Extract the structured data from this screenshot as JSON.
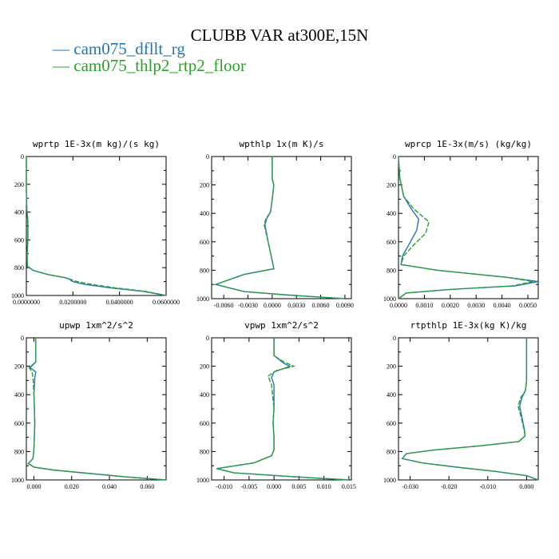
{
  "title": "CLUBB VAR at300E,15N",
  "legend": [
    {
      "label": "— cam075_dfllt_rg",
      "color": "#1f77b4"
    },
    {
      "label": "— cam075_thlp2_rtp2_floor",
      "color": "#2ca02c"
    }
  ],
  "chart_data": [
    {
      "type": "line",
      "title": "wprtp  1E-3x(m kg)/(s kg)",
      "xlim": [
        0,
        0.06
      ],
      "ylim": [
        1000,
        0
      ],
      "xticks": [
        0,
        0.02,
        0.04,
        0.06
      ],
      "xticklabels": [
        "0.0000000",
        "0.0200000",
        "0.0400000",
        "0.0600000"
      ],
      "yticks": [
        0,
        200,
        400,
        600,
        800,
        1000
      ],
      "yticklabels": [
        "0",
        "200",
        "400",
        "600",
        "800",
        "1000"
      ],
      "series": [
        {
          "name": "cam075_dfllt_rg",
          "color": "#1f77b4",
          "x": [
            0,
            0,
            0.0002,
            0.0006,
            0.0007,
            0.0007,
            0.0006,
            0.0003,
            0.0004,
            0.003,
            0.0095,
            0.0165,
            0.0185,
            0.0192,
            0.0205,
            0.025,
            0.036,
            0.05,
            0.06
          ],
          "y": [
            0,
            250,
            380,
            450,
            500,
            550,
            620,
            700,
            790,
            820,
            850,
            872,
            882,
            893,
            903,
            920,
            945,
            970,
            1000
          ]
        },
        {
          "name": "cam075_thlp2_rtp2_floor",
          "color": "#2ca02c",
          "x": [
            0,
            0,
            0.0002,
            0.0005,
            0.0006,
            0.0006,
            0.0005,
            0.0003,
            0.0004,
            0.003,
            0.0095,
            0.0168,
            0.0188,
            0.0203,
            0.0225,
            0.028,
            0.038,
            0.051,
            0.06
          ],
          "y": [
            0,
            250,
            380,
            450,
            500,
            550,
            620,
            700,
            790,
            820,
            850,
            872,
            882,
            893,
            903,
            920,
            945,
            970,
            1000
          ]
        }
      ]
    },
    {
      "type": "line",
      "title": "wpthlp  1x(m K)/s",
      "xlim": [
        -0.0075,
        0.0098
      ],
      "ylim": [
        1000,
        0
      ],
      "xticks": [
        -0.006,
        -0.003,
        0,
        0.003,
        0.006,
        0.009
      ],
      "xticklabels": [
        "-0.0060",
        "-0.0030",
        "0.0000",
        "0.0030",
        "0.0060",
        "0.0090"
      ],
      "yticks": [
        0,
        200,
        400,
        600,
        800,
        1000
      ],
      "yticklabels": [
        "0",
        "200",
        "400",
        "600",
        "800",
        "1000"
      ],
      "series": [
        {
          "name": "cam075_dfllt_rg",
          "color": "#1f77b4",
          "x": [
            0,
            0,
            0.0002,
            0,
            -0.0002,
            -0.0007,
            -0.0009,
            -0.0005,
            0.0001,
            0.0002,
            -0.0035,
            -0.007,
            -0.0035,
            0.002,
            0.009
          ],
          "y": [
            0,
            160,
            200,
            300,
            390,
            440,
            480,
            600,
            760,
            790,
            830,
            900,
            950,
            975,
            1000
          ]
        },
        {
          "name": "cam075_thlp2_rtp2_floor",
          "color": "#2ca02c",
          "x": [
            0,
            0,
            0.0002,
            0,
            -0.0002,
            -0.0008,
            -0.001,
            -0.0005,
            0.0001,
            0.0002,
            -0.0035,
            -0.007,
            -0.0035,
            0.002,
            0.009
          ],
          "y": [
            0,
            160,
            200,
            300,
            390,
            440,
            480,
            600,
            760,
            790,
            830,
            900,
            950,
            975,
            1000
          ]
        }
      ]
    },
    {
      "type": "line",
      "title": "wprcp  1E-3x(m/s) (kg/kg)",
      "xlim": [
        0,
        0.0054
      ],
      "ylim": [
        1000,
        0
      ],
      "xticks": [
        0,
        0.001,
        0.002,
        0.003,
        0.004,
        0.005
      ],
      "xticklabels": [
        "0.0000",
        "0.0010",
        "0.0020",
        "0.0030",
        "0.0040",
        "0.0050"
      ],
      "yticks": [
        0,
        200,
        400,
        600,
        800,
        1000
      ],
      "yticklabels": [
        "0",
        "200",
        "400",
        "600",
        "800",
        "1000"
      ],
      "series": [
        {
          "name": "cam075_dfllt_rg",
          "color": "#1f77b4",
          "x": [
            0,
            5e-05,
            0.0002,
            0.0005,
            0.00078,
            0.0007,
            0.0004,
            0.00015,
            0.0001,
            0.0015,
            0.0042,
            0.0054,
            0.0045,
            0.002,
            0.0003,
            0
          ],
          "y": [
            0,
            150,
            280,
            370,
            440,
            520,
            620,
            700,
            760,
            800,
            850,
            880,
            910,
            935,
            960,
            1000
          ]
        },
        {
          "name": "cam075_thlp2_rtp2_floor",
          "color": "#2ca02c",
          "x": [
            0,
            5e-05,
            0.0002,
            0.0006,
            0.00118,
            0.00105,
            0.0006,
            0.0002,
            0.0001,
            0.0015,
            0.0042,
            0.0052,
            0.0044,
            0.002,
            0.0003,
            0
          ],
          "y": [
            0,
            150,
            280,
            370,
            460,
            540,
            620,
            700,
            760,
            800,
            850,
            880,
            910,
            935,
            960,
            1000
          ]
        }
      ]
    },
    {
      "type": "line",
      "title": "upwp  1xm^2/s^2",
      "xlim": [
        -0.004,
        0.07
      ],
      "ylim": [
        1000,
        0
      ],
      "xticks": [
        0,
        0.02,
        0.04,
        0.06
      ],
      "xticklabels": [
        "0.000",
        "0.020",
        "0.040",
        "0.060"
      ],
      "yticks": [
        0,
        200,
        400,
        600,
        800,
        1000
      ],
      "yticklabels": [
        "0",
        "200",
        "400",
        "600",
        "800",
        "1000"
      ],
      "series": [
        {
          "name": "cam075_dfllt_rg",
          "color": "#1f77b4",
          "x": [
            0.001,
            0.001,
            -0.002,
            0.001,
            0.0005,
            0,
            0.0005,
            0,
            -0.0005,
            -0.003,
            0,
            0.01,
            0.03,
            0.05,
            0.07
          ],
          "y": [
            0,
            170,
            210,
            240,
            280,
            400,
            600,
            780,
            850,
            885,
            910,
            930,
            955,
            980,
            1000
          ]
        },
        {
          "name": "cam075_thlp2_rtp2_floor",
          "color": "#2ca02c",
          "x": [
            0.001,
            0.001,
            -0.0025,
            -0.001,
            -0.0005,
            0,
            0.0005,
            0,
            -0.0005,
            -0.003,
            0,
            0.01,
            0.03,
            0.05,
            0.07
          ],
          "y": [
            0,
            170,
            210,
            240,
            280,
            400,
            600,
            780,
            850,
            885,
            910,
            930,
            955,
            980,
            1000
          ]
        }
      ]
    },
    {
      "type": "line",
      "title": "vpwp  1xm^2/s^2",
      "xlim": [
        -0.0125,
        0.0155
      ],
      "ylim": [
        1000,
        0
      ],
      "xticks": [
        -0.01,
        -0.005,
        0,
        0.005,
        0.01,
        0.015
      ],
      "xticklabels": [
        "-0.010",
        "-0.005",
        "0.000",
        "0.005",
        "0.010",
        "0.015"
      ],
      "yticks": [
        0,
        200,
        400,
        600,
        800,
        1000
      ],
      "yticklabels": [
        "0",
        "200",
        "400",
        "600",
        "800",
        "1000"
      ],
      "series": [
        {
          "name": "cam075_dfllt_rg",
          "color": "#1f77b4",
          "x": [
            0,
            0,
            0.002,
            0.0032,
            0,
            -0.0005,
            0,
            0,
            -0.0002,
            0,
            0,
            -0.0005,
            -0.004,
            -0.0115,
            -0.008,
            0.005,
            0.015
          ],
          "y": [
            0,
            125,
            180,
            200,
            240,
            280,
            330,
            500,
            600,
            700,
            790,
            830,
            880,
            920,
            950,
            980,
            1000
          ]
        },
        {
          "name": "cam075_thlp2_rtp2_floor",
          "color": "#2ca02c",
          "x": [
            0,
            0,
            0.002,
            0.004,
            0.0005,
            -0.0012,
            -0.0005,
            0,
            -0.0002,
            0,
            0,
            -0.0005,
            -0.004,
            -0.0115,
            -0.008,
            0.005,
            0.015
          ],
          "y": [
            0,
            125,
            170,
            200,
            230,
            270,
            330,
            500,
            600,
            700,
            790,
            830,
            880,
            920,
            950,
            980,
            1000
          ]
        }
      ]
    },
    {
      "type": "line",
      "title": "rtpthlp  1E-3x(kg K)/kg",
      "xlim": [
        -0.033,
        0.003
      ],
      "ylim": [
        1000,
        0
      ],
      "xticks": [
        -0.03,
        -0.02,
        -0.01,
        0
      ],
      "xticklabels": [
        "-0.030",
        "-0.020",
        "-0.010",
        "0.000"
      ],
      "yticks": [
        0,
        200,
        400,
        600,
        800,
        1000
      ],
      "yticklabels": [
        "0",
        "200",
        "400",
        "600",
        "800",
        "1000"
      ],
      "series": [
        {
          "name": "cam075_dfllt_rg",
          "color": "#1f77b4",
          "x": [
            0,
            0,
            -0.0003,
            -0.0012,
            -0.0018,
            -0.0012,
            -0.0006,
            -0.0004,
            -0.002,
            -0.012,
            -0.024,
            -0.031,
            -0.032,
            -0.027,
            -0.018,
            -0.008,
            0,
            0.003
          ],
          "y": [
            0,
            300,
            370,
            420,
            480,
            560,
            640,
            690,
            730,
            760,
            790,
            815,
            850,
            880,
            910,
            940,
            970,
            1000
          ]
        },
        {
          "name": "cam075_thlp2_rtp2_floor",
          "color": "#2ca02c",
          "x": [
            0,
            0,
            -0.0003,
            -0.0015,
            -0.0022,
            -0.0014,
            -0.0007,
            -0.0004,
            -0.002,
            -0.012,
            -0.024,
            -0.031,
            -0.032,
            -0.027,
            -0.018,
            -0.008,
            0,
            0.003
          ],
          "y": [
            0,
            300,
            370,
            420,
            480,
            560,
            640,
            690,
            730,
            760,
            790,
            815,
            850,
            880,
            910,
            940,
            970,
            1000
          ]
        }
      ]
    }
  ]
}
